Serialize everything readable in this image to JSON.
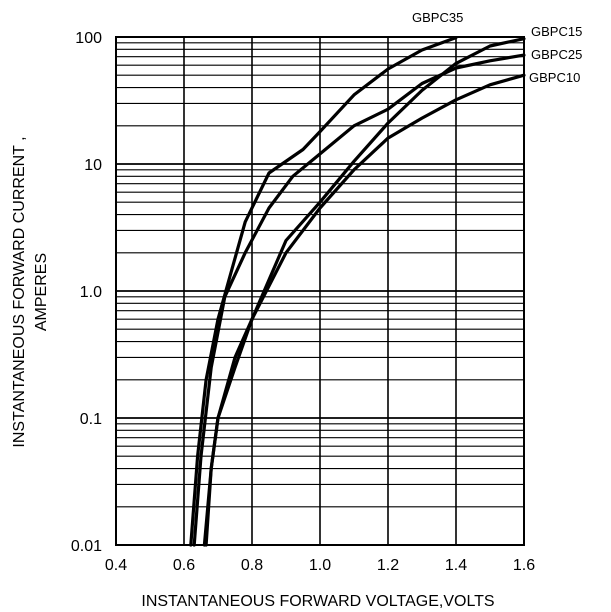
{
  "chart_data": {
    "type": "line",
    "title": "",
    "xlabel": "INSTANTANEOUS FORWARD VOLTAGE,VOLTS",
    "ylabel_line1": "INSTANTANEOUS FORWARD CURRENT ,",
    "ylabel_line2": "AMPERES",
    "x_scale": "linear",
    "y_scale": "log",
    "xlim": [
      0.4,
      1.6
    ],
    "ylim": [
      0.01,
      100
    ],
    "grid": true,
    "x_ticks": [
      "0.4",
      "0.6",
      "0.8",
      "1.0",
      "1.2",
      "1.4",
      "1.6"
    ],
    "x_tick_values": [
      0.4,
      0.6,
      0.8,
      1.0,
      1.2,
      1.4,
      1.6
    ],
    "y_ticks": [
      "0.01",
      "0.1",
      "1.0",
      "10",
      "100"
    ],
    "y_tick_values": [
      0.01,
      0.1,
      1,
      10,
      100
    ],
    "legend": "inline-right",
    "series": [
      {
        "name": "GBPC35",
        "x": [
          0.62,
          0.64,
          0.665,
          0.7,
          0.735,
          0.78,
          0.85,
          0.95,
          1.0,
          1.1,
          1.2,
          1.3,
          1.4
        ],
        "y": [
          0.01,
          0.05,
          0.2,
          0.6,
          1.3,
          3.5,
          8.5,
          13.0,
          18.0,
          35.0,
          56.0,
          79.0,
          99.0
        ]
      },
      {
        "name": "GBPC15",
        "x": [
          0.66,
          0.68,
          0.7,
          0.75,
          0.8,
          0.9,
          1.0,
          1.1,
          1.2,
          1.3,
          1.4,
          1.5,
          1.6
        ],
        "y": [
          0.01,
          0.04,
          0.1,
          0.25,
          0.6,
          2.5,
          5.0,
          10.5,
          21.0,
          38.0,
          62.0,
          85.0,
          97.0
        ]
      },
      {
        "name": "GBPC25",
        "x": [
          0.63,
          0.65,
          0.68,
          0.72,
          0.78,
          0.85,
          0.92,
          1.0,
          1.1,
          1.2,
          1.3,
          1.4,
          1.5,
          1.6
        ],
        "y": [
          0.01,
          0.05,
          0.25,
          0.9,
          2.0,
          4.5,
          8.0,
          12.0,
          20.0,
          27.0,
          43.0,
          57.0,
          65.0,
          72.0
        ]
      },
      {
        "name": "GBPC10",
        "x": [
          0.665,
          0.68,
          0.7,
          0.75,
          0.8,
          0.9,
          1.0,
          1.1,
          1.2,
          1.3,
          1.4,
          1.5,
          1.6
        ],
        "y": [
          0.01,
          0.04,
          0.1,
          0.3,
          0.6,
          2.0,
          4.5,
          9.0,
          16.0,
          23.0,
          32.0,
          42.0,
          50.0
        ]
      }
    ]
  }
}
